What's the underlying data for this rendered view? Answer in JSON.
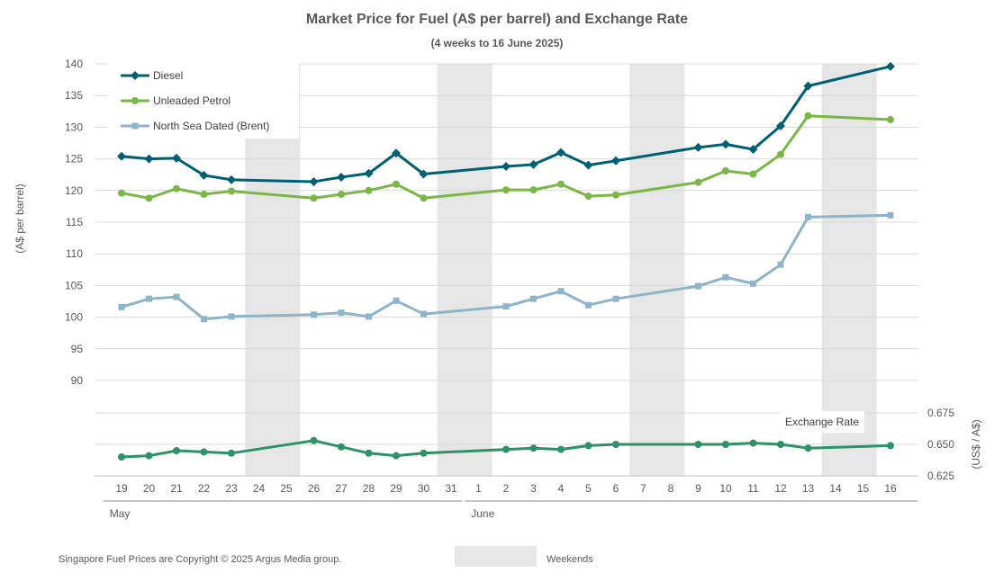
{
  "chart_data": {
    "type": "line",
    "title": "Market Price for Fuel (A$ per barrel) and Exchange Rate",
    "subtitle": "(4 weeks to 16 June 2025)",
    "ylabel": "(A$ per barrel)",
    "y2label": "(US$ / A$)",
    "ylim": [
      90,
      140
    ],
    "yticks": [
      90,
      95,
      100,
      105,
      110,
      115,
      120,
      125,
      130,
      135,
      140
    ],
    "y2lim": [
      0.625,
      0.675
    ],
    "y2ticks": [
      0.625,
      0.65,
      0.675
    ],
    "y2tick_labels": [
      "0.625",
      "0.650",
      "0.675"
    ],
    "categories": [
      "19",
      "20",
      "21",
      "22",
      "23",
      "24",
      "25",
      "26",
      "27",
      "28",
      "29",
      "30",
      "31",
      "1",
      "2",
      "3",
      "4",
      "5",
      "6",
      "7",
      "8",
      "9",
      "10",
      "11",
      "12",
      "13",
      "14",
      "15",
      "16"
    ],
    "months": [
      {
        "label": "May",
        "start": 0,
        "end": 12
      },
      {
        "label": "June",
        "start": 13,
        "end": 28
      }
    ],
    "weekends": [
      [
        5,
        6
      ],
      [
        12,
        13
      ],
      [
        19,
        20
      ],
      [
        26,
        27
      ]
    ],
    "series": [
      {
        "name": "Diesel",
        "color": "#005f73",
        "marker": "diamond",
        "values": [
          125.4,
          125.0,
          125.1,
          122.4,
          121.7,
          null,
          null,
          121.4,
          122.1,
          122.7,
          125.9,
          122.6,
          null,
          null,
          123.8,
          124.1,
          126.0,
          124.0,
          124.7,
          null,
          null,
          126.8,
          127.3,
          126.5,
          130.2,
          136.5,
          null,
          null,
          139.6
        ]
      },
      {
        "name": "Unleaded Petrol",
        "color": "#7ab648",
        "marker": "circle",
        "values": [
          119.6,
          118.8,
          120.3,
          119.4,
          119.9,
          null,
          null,
          118.8,
          119.4,
          120.0,
          121.0,
          118.8,
          null,
          null,
          120.1,
          120.1,
          121.0,
          119.1,
          119.3,
          null,
          null,
          121.3,
          123.1,
          122.6,
          125.7,
          131.8,
          null,
          null,
          131.2
        ]
      },
      {
        "name": "North Sea Dated (Brent)",
        "color": "#8db4c8",
        "marker": "square",
        "values": [
          101.6,
          102.9,
          103.2,
          99.7,
          100.1,
          null,
          null,
          100.4,
          100.7,
          100.1,
          102.6,
          100.5,
          null,
          null,
          101.7,
          102.9,
          104.1,
          101.9,
          102.9,
          null,
          null,
          104.9,
          106.3,
          105.3,
          108.3,
          115.8,
          null,
          null,
          116.1
        ]
      },
      {
        "name": "Exchange Rate",
        "color": "#2e9167",
        "marker": "circle",
        "axis": "right",
        "values": [
          0.64,
          0.641,
          0.645,
          0.644,
          0.643,
          null,
          null,
          0.653,
          0.648,
          0.643,
          0.641,
          0.643,
          null,
          null,
          0.646,
          0.647,
          0.646,
          0.649,
          0.65,
          null,
          null,
          0.65,
          0.65,
          0.651,
          0.65,
          0.647,
          null,
          null,
          0.649
        ]
      }
    ],
    "legend": [
      "Diesel",
      "Unleaded Petrol",
      "North Sea Dated (Brent)"
    ],
    "legend_position": "top-left",
    "series_label": "Exchange Rate",
    "weekend_legend": "Weekends",
    "footer": "Singapore Fuel Prices are Copyright © 2025 Argus Media group.",
    "grid": true,
    "weekend_color": "#e6e6e6",
    "grid_color": "#d9d9d9",
    "text_color": "#595959"
  }
}
